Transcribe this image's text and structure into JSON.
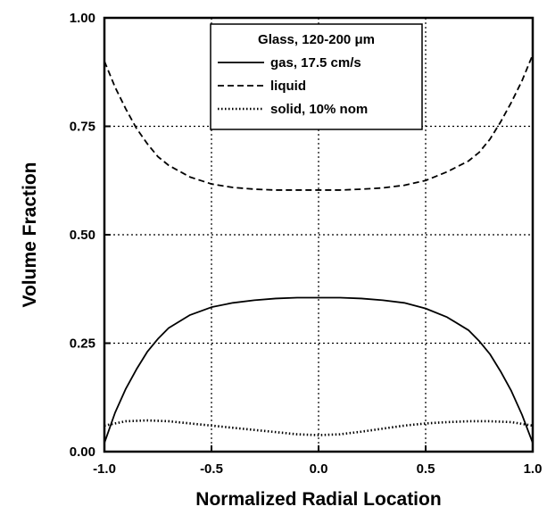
{
  "chart_data": {
    "type": "line",
    "xlabel": "Normalized Radial Location",
    "ylabel": "Volume Fraction",
    "xlim": [
      -1.0,
      1.0
    ],
    "ylim": [
      0.0,
      1.0
    ],
    "x_ticks": [
      -1.0,
      -0.5,
      0.0,
      0.5,
      1.0
    ],
    "x_tick_labels": [
      "-1.0",
      "-0.5",
      "0.0",
      "0.5",
      "1.0"
    ],
    "y_ticks": [
      0.0,
      0.25,
      0.5,
      0.75,
      1.0
    ],
    "y_tick_labels": [
      "0.00",
      "0.25",
      "0.50",
      "0.75",
      "1.00"
    ],
    "grid": true,
    "legend": {
      "title": "Glass, 120-200 μm",
      "placement": "top-center"
    },
    "series": [
      {
        "name": "gas, 17.5 cm/s",
        "style": "solid",
        "x": [
          -1.0,
          -0.95,
          -0.9,
          -0.85,
          -0.8,
          -0.75,
          -0.7,
          -0.6,
          -0.5,
          -0.4,
          -0.3,
          -0.2,
          -0.1,
          0.0,
          0.1,
          0.2,
          0.3,
          0.4,
          0.5,
          0.6,
          0.7,
          0.75,
          0.8,
          0.85,
          0.9,
          0.95,
          1.0
        ],
        "y": [
          0.02,
          0.09,
          0.145,
          0.19,
          0.23,
          0.26,
          0.285,
          0.315,
          0.333,
          0.343,
          0.349,
          0.353,
          0.355,
          0.355,
          0.355,
          0.353,
          0.349,
          0.343,
          0.33,
          0.31,
          0.28,
          0.255,
          0.225,
          0.185,
          0.14,
          0.085,
          0.02
        ]
      },
      {
        "name": "liquid",
        "style": "dashed",
        "x": [
          -1.0,
          -0.95,
          -0.9,
          -0.85,
          -0.8,
          -0.75,
          -0.7,
          -0.6,
          -0.5,
          -0.4,
          -0.3,
          -0.2,
          -0.1,
          0.0,
          0.1,
          0.2,
          0.3,
          0.4,
          0.5,
          0.6,
          0.7,
          0.75,
          0.8,
          0.85,
          0.9,
          0.95,
          1.0
        ],
        "y": [
          0.9,
          0.84,
          0.79,
          0.745,
          0.71,
          0.68,
          0.66,
          0.633,
          0.617,
          0.609,
          0.605,
          0.603,
          0.603,
          0.603,
          0.603,
          0.605,
          0.608,
          0.614,
          0.625,
          0.645,
          0.67,
          0.69,
          0.72,
          0.76,
          0.805,
          0.855,
          0.915
        ]
      },
      {
        "name": "solid, 10% nom",
        "style": "dotted",
        "x": [
          -1.0,
          -0.9,
          -0.8,
          -0.7,
          -0.6,
          -0.5,
          -0.4,
          -0.3,
          -0.2,
          -0.1,
          0.0,
          0.1,
          0.2,
          0.3,
          0.4,
          0.5,
          0.6,
          0.7,
          0.8,
          0.9,
          1.0
        ],
        "y": [
          0.06,
          0.07,
          0.072,
          0.07,
          0.065,
          0.06,
          0.055,
          0.05,
          0.045,
          0.04,
          0.038,
          0.04,
          0.046,
          0.053,
          0.06,
          0.065,
          0.068,
          0.07,
          0.07,
          0.068,
          0.06
        ]
      }
    ]
  }
}
